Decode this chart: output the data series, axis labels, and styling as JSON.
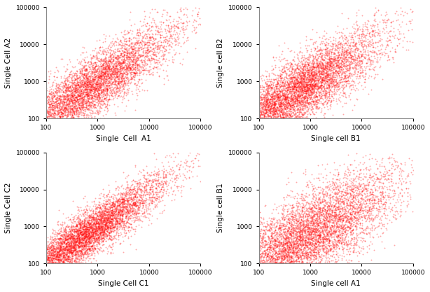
{
  "panels": [
    {
      "xlabel": "Single  Cell  A1",
      "ylabel": "Single Cell A2",
      "seed": 42,
      "n_points": 6000,
      "log_x_mean": 2.8,
      "log_y_mean": 2.8,
      "log_x_std": 0.85,
      "log_y_std": 0.85,
      "corr": 0.88
    },
    {
      "xlabel": "Single cell B1",
      "ylabel": "Single cell B2",
      "seed": 7,
      "n_points": 7000,
      "log_x_mean": 2.7,
      "log_y_mean": 2.7,
      "log_x_std": 0.85,
      "log_y_std": 0.85,
      "corr": 0.85
    },
    {
      "xlabel": "Single Cell C1",
      "ylabel": "Single Cell C2",
      "seed": 99,
      "n_points": 6500,
      "log_x_mean": 2.75,
      "log_y_mean": 2.75,
      "log_x_std": 0.8,
      "log_y_std": 0.8,
      "corr": 0.92
    },
    {
      "xlabel": "Single cell A1",
      "ylabel": "Single cell B1",
      "seed": 55,
      "n_points": 7000,
      "log_x_mean": 2.9,
      "log_y_mean": 2.7,
      "log_x_std": 0.88,
      "log_y_std": 0.88,
      "corr": 0.75
    }
  ],
  "dot_color": "#FF0000",
  "dot_alpha": 0.35,
  "dot_size": 1.8,
  "xlim": [
    100,
    100000
  ],
  "ylim": [
    100,
    100000
  ],
  "xticks": [
    100,
    1000,
    10000,
    100000
  ],
  "yticks": [
    100,
    1000,
    10000,
    100000
  ],
  "background_color": "#ffffff",
  "fig_width": 6.14,
  "fig_height": 4.17,
  "dpi": 100
}
